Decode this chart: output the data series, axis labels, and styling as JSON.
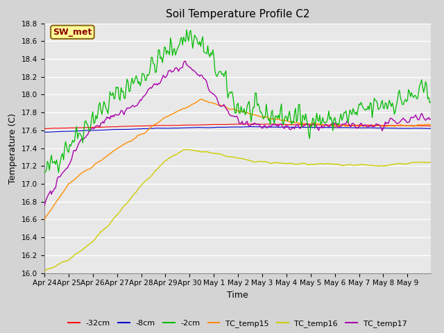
{
  "title": "Soil Temperature Profile C2",
  "xlabel": "Time",
  "ylabel": "Temperature (C)",
  "ylim": [
    16.0,
    18.8
  ],
  "background_color": "#d4d4d4",
  "plot_bg_color": "#e8e8e8",
  "grid_color": "#ffffff",
  "annotation_text": "SW_met",
  "annotation_color": "#8b0000",
  "annotation_bg": "#ffff99",
  "annotation_border": "#8b6914",
  "x_tick_labels": [
    "Apr 24",
    "Apr 25",
    "Apr 26",
    "Apr 27",
    "Apr 28",
    "Apr 29",
    "Apr 30",
    "May 1",
    "May 2",
    "May 3",
    "May 4",
    "May 5",
    "May 6",
    "May 7",
    "May 8",
    "May 9"
  ],
  "legend_labels": [
    "-32cm",
    "-8cm",
    "-2cm",
    "TC_temp15",
    "TC_temp16",
    "TC_temp17"
  ],
  "legend_colors": [
    "#ff0000",
    "#0000cd",
    "#00bb00",
    "#ff8c00",
    "#cccc00",
    "#aa00aa"
  ],
  "title_fontsize": 11,
  "axis_fontsize": 9,
  "tick_fontsize": 7.5
}
